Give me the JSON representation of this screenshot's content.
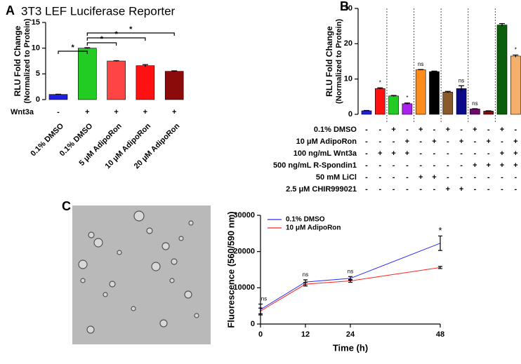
{
  "chart_data": [
    {
      "type": "bar",
      "panel": "A",
      "title": "3T3 LEF Luciferase Reporter",
      "ylabel": "RLU Fold Change",
      "ylabel_sub": "(Normalized to Protein)",
      "categories": [
        "0.1% DMSO",
        "0.1% DMSO",
        "5 μM AdipoRon",
        "10 μM AdipoRon",
        "20 μM AdipoRon"
      ],
      "values": [
        1.0,
        10.0,
        7.5,
        6.6,
        5.5
      ],
      "errors": [
        0.05,
        0.1,
        0.08,
        0.2,
        0.1
      ],
      "colors": [
        "#1f1fe0",
        "#22cc22",
        "#ff4444",
        "#ff1111",
        "#8b0a0a"
      ],
      "ylim": [
        0,
        15
      ],
      "yticks": [
        0,
        5,
        10,
        15
      ],
      "conditions": [
        {
          "name": "Wnt3a",
          "values": [
            "-",
            "+",
            "+",
            "+",
            "+"
          ]
        }
      ],
      "annotations": [
        "*",
        "*",
        "*",
        "*"
      ]
    },
    {
      "type": "bar",
      "panel": "B",
      "ylabel": "RLU Fold Change",
      "ylabel_sub": "(Normalized to Protein)",
      "values": [
        1.0,
        7.3,
        5.2,
        3.0,
        12.6,
        12.1,
        6.3,
        7.3,
        1.5,
        0.9,
        25.3,
        16.5
      ],
      "errors": [
        0.1,
        0.2,
        0.15,
        0.2,
        0.1,
        0.15,
        0.2,
        0.8,
        0.1,
        0.1,
        0.4,
        0.3
      ],
      "colors": [
        "#1f1fe0",
        "#ff1111",
        "#22cc22",
        "#aa22ee",
        "#ff8c1a",
        "#000000",
        "#8b5a2b",
        "#0a0a8b",
        "#6b0a6b",
        "#8b0a0a",
        "#0b5e0b",
        "#f4b06b"
      ],
      "bar_labels": [
        null,
        "*",
        null,
        "*",
        "ns",
        null,
        null,
        "ns",
        "ns",
        null,
        null,
        "*"
      ],
      "ylim": [
        0,
        30
      ],
      "yticks": [
        0,
        10,
        20,
        30
      ],
      "conditions": [
        {
          "name": "0.1% DMSO",
          "values": [
            "-",
            "-",
            "+",
            "-",
            "+",
            "-",
            "+",
            "-",
            "+",
            "-",
            "+",
            "-"
          ]
        },
        {
          "name": "10 μM AdipoRon",
          "values": [
            "-",
            "-",
            "-",
            "+",
            "-",
            "+",
            "-",
            "+",
            "-",
            "+",
            "-",
            "+"
          ]
        },
        {
          "name": "100 ng/mL Wnt3a",
          "values": [
            "-",
            "+",
            "+",
            "+",
            "-",
            "-",
            "-",
            "-",
            "-",
            "-",
            "+",
            "+"
          ]
        },
        {
          "name": "500 ng/mL R-Spondin1",
          "values": [
            "-",
            "-",
            "-",
            "-",
            "-",
            "-",
            "-",
            "-",
            "+",
            "+",
            "+",
            "+"
          ]
        },
        {
          "name": "50 mM LiCl",
          "values": [
            "-",
            "-",
            "-",
            "-",
            "+",
            "+",
            "-",
            "-",
            "-",
            "-",
            "-",
            "-"
          ]
        },
        {
          "name": "2.5 μM CHIR999021",
          "values": [
            "-",
            "-",
            "-",
            "-",
            "-",
            "-",
            "+",
            "+",
            "-",
            "-",
            "-",
            "-"
          ]
        }
      ]
    },
    {
      "type": "line",
      "panel": "C",
      "xlabel": "Time (h)",
      "ylabel": "Fluorescence (560/590 nm)",
      "x": [
        0,
        12,
        24,
        48
      ],
      "xlim": [
        0,
        48
      ],
      "xticks": [
        0,
        12,
        24,
        48
      ],
      "ylim": [
        0,
        30000
      ],
      "yticks": [
        0,
        10000,
        20000,
        30000
      ],
      "series": [
        {
          "name": "0.1% DMSO",
          "color": "#2a2aff",
          "values": [
            4000,
            11600,
            12600,
            22300
          ],
          "errors": [
            1500,
            600,
            500,
            2000
          ]
        },
        {
          "name": "10 μM AdipoRon",
          "color": "#ff2020",
          "values": [
            3600,
            11000,
            11900,
            15600
          ],
          "errors": [
            800,
            500,
            400,
            300
          ]
        }
      ],
      "point_labels": [
        "ns",
        "ns",
        "ns",
        "*"
      ],
      "legend": "upper left"
    }
  ]
}
